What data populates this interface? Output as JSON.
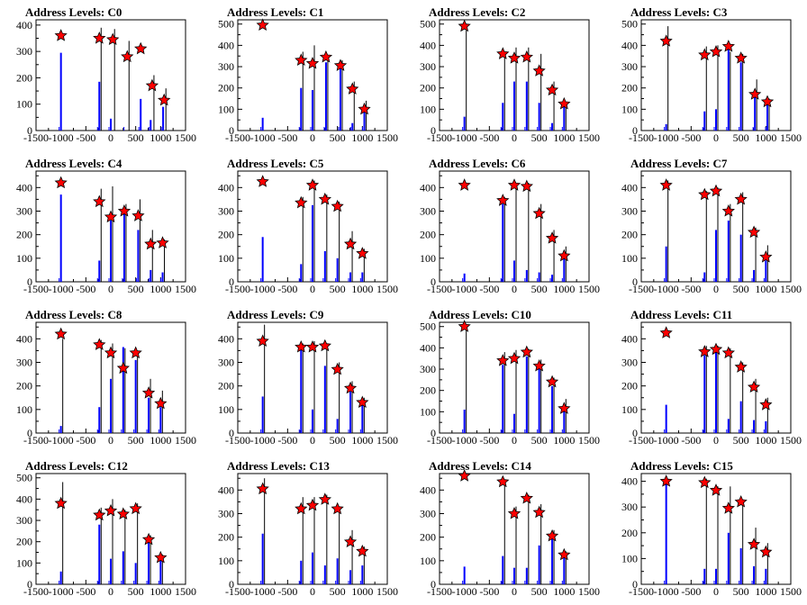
{
  "chart_data": [
    {
      "type": "bar",
      "title": "Address Levels: C0",
      "xlim": [
        -1500,
        1500
      ],
      "ylim": [
        0,
        420
      ],
      "yticks": [
        0,
        100,
        200,
        300,
        400
      ],
      "xticks": [
        -1500,
        -1000,
        -500,
        0,
        500,
        1000,
        1500
      ],
      "marker_x": [
        -1000,
        -230,
        40,
        330,
        600,
        830,
        1070
      ],
      "marker_y": [
        360,
        350,
        345,
        280,
        310,
        170,
        115
      ],
      "blue_x": [
        -1000,
        -230,
        0,
        300,
        600,
        800,
        1050
      ],
      "blue_y": [
        295,
        185,
        45,
        0,
        120,
        40,
        90
      ],
      "black_x": [
        -230,
        40,
        330,
        830,
        1070
      ],
      "black_y": [
        390,
        385,
        340,
        210,
        160
      ]
    },
    {
      "type": "bar",
      "title": "Address Levels: C1",
      "xlim": [
        -1500,
        1500
      ],
      "ylim": [
        0,
        520
      ],
      "yticks": [
        0,
        100,
        200,
        300,
        400,
        500
      ],
      "xticks": [
        -1500,
        -1000,
        -500,
        0,
        500,
        1000,
        1500
      ],
      "marker_x": [
        -1000,
        -230,
        0,
        270,
        560,
        800,
        1040
      ],
      "marker_y": [
        495,
        330,
        315,
        345,
        305,
        195,
        100
      ],
      "blue_x": [
        -1000,
        -230,
        0,
        270,
        560,
        800,
        1040
      ],
      "blue_y": [
        60,
        200,
        190,
        320,
        290,
        35,
        100
      ],
      "black_x": [
        -230,
        0,
        270,
        560,
        800,
        1040
      ],
      "black_y": [
        370,
        400,
        340,
        330,
        230,
        140
      ]
    },
    {
      "type": "bar",
      "title": "Address Levels: C2",
      "xlim": [
        -1500,
        1500
      ],
      "ylim": [
        0,
        520
      ],
      "yticks": [
        0,
        100,
        200,
        300,
        400,
        500
      ],
      "xticks": [
        -1500,
        -1000,
        -500,
        0,
        500,
        1000,
        1500
      ],
      "marker_x": [
        -1000,
        -230,
        0,
        250,
        500,
        760,
        1000
      ],
      "marker_y": [
        490,
        360,
        340,
        345,
        280,
        190,
        125
      ],
      "blue_x": [
        -1000,
        -230,
        0,
        250,
        500,
        760,
        1000
      ],
      "blue_y": [
        65,
        130,
        230,
        230,
        130,
        35,
        125
      ],
      "black_x": [
        -1000,
        -230,
        0,
        250,
        500,
        760,
        1000
      ],
      "black_y": [
        470,
        350,
        390,
        390,
        360,
        230,
        130
      ]
    },
    {
      "type": "bar",
      "title": "Address Levels: C3",
      "xlim": [
        -1500,
        1500
      ],
      "ylim": [
        0,
        520
      ],
      "yticks": [
        0,
        100,
        200,
        300,
        400,
        500
      ],
      "xticks": [
        -1500,
        -1000,
        -500,
        0,
        500,
        1000,
        1500
      ],
      "marker_x": [
        -1000,
        -230,
        0,
        250,
        500,
        780,
        1030
      ],
      "marker_y": [
        420,
        355,
        370,
        395,
        340,
        170,
        135
      ],
      "blue_x": [
        -1000,
        -230,
        0,
        250,
        500,
        780,
        1030
      ],
      "blue_y": [
        30,
        90,
        100,
        380,
        320,
        160,
        130
      ],
      "black_x": [
        -1000,
        -230,
        0,
        250,
        500,
        780,
        1030
      ],
      "black_y": [
        490,
        395,
        400,
        370,
        360,
        240,
        150
      ]
    },
    {
      "type": "bar",
      "title": "Address Levels: C4",
      "xlim": [
        -1500,
        1500
      ],
      "ylim": [
        0,
        470
      ],
      "yticks": [
        0,
        100,
        200,
        300,
        400
      ],
      "xticks": [
        -1500,
        -1000,
        -500,
        0,
        500,
        1000,
        1500
      ],
      "marker_x": [
        -1000,
        -230,
        0,
        270,
        550,
        800,
        1040
      ],
      "marker_y": [
        420,
        340,
        275,
        300,
        280,
        160,
        165
      ],
      "blue_x": [
        -1000,
        -230,
        0,
        270,
        550,
        800,
        1040
      ],
      "blue_y": [
        370,
        90,
        260,
        300,
        220,
        50,
        40
      ],
      "black_x": [
        -230,
        0,
        270,
        550,
        800,
        1040
      ],
      "black_y": [
        395,
        405,
        330,
        350,
        220,
        180
      ]
    },
    {
      "type": "bar",
      "title": "Address Levels: C5",
      "xlim": [
        -1500,
        1500
      ],
      "ylim": [
        0,
        470
      ],
      "yticks": [
        0,
        100,
        200,
        300,
        400
      ],
      "xticks": [
        -1500,
        -1000,
        -500,
        0,
        500,
        1000,
        1500
      ],
      "marker_x": [
        -1000,
        -230,
        0,
        250,
        500,
        760,
        1000
      ],
      "marker_y": [
        425,
        335,
        410,
        350,
        320,
        160,
        120
      ],
      "blue_x": [
        -1000,
        -230,
        0,
        250,
        500,
        760,
        1000
      ],
      "blue_y": [
        190,
        75,
        325,
        130,
        100,
        40,
        40
      ],
      "black_x": [
        -230,
        0,
        250,
        500,
        760,
        1000
      ],
      "black_y": [
        360,
        430,
        370,
        340,
        215,
        140
      ]
    },
    {
      "type": "bar",
      "title": "Address Levels: C6",
      "xlim": [
        -1500,
        1500
      ],
      "ylim": [
        0,
        470
      ],
      "yticks": [
        0,
        100,
        200,
        300,
        400
      ],
      "xticks": [
        -1500,
        -1000,
        -500,
        0,
        500,
        1000,
        1500
      ],
      "marker_x": [
        -1000,
        -230,
        0,
        250,
        500,
        760,
        1000
      ],
      "marker_y": [
        410,
        345,
        410,
        405,
        290,
        185,
        110
      ],
      "blue_x": [
        -1000,
        -230,
        0,
        250,
        500,
        760,
        1000
      ],
      "blue_y": [
        35,
        330,
        90,
        50,
        40,
        30,
        110
      ],
      "black_x": [
        -230,
        0,
        250,
        500,
        760,
        1000
      ],
      "black_y": [
        360,
        420,
        420,
        330,
        220,
        150
      ]
    },
    {
      "type": "bar",
      "title": "Address Levels: C7",
      "xlim": [
        -1500,
        1500
      ],
      "ylim": [
        0,
        470
      ],
      "yticks": [
        0,
        100,
        200,
        300,
        400
      ],
      "xticks": [
        -1500,
        -1000,
        -500,
        0,
        500,
        1000,
        1500
      ],
      "marker_x": [
        -1000,
        -230,
        0,
        250,
        500,
        760,
        1000
      ],
      "marker_y": [
        410,
        370,
        385,
        300,
        350,
        210,
        105
      ],
      "blue_x": [
        -1000,
        -230,
        0,
        250,
        500,
        760,
        1000
      ],
      "blue_y": [
        150,
        40,
        220,
        260,
        200,
        50,
        90
      ],
      "black_x": [
        -1000,
        -230,
        0,
        250,
        500,
        760,
        1000
      ],
      "black_y": [
        430,
        385,
        400,
        330,
        380,
        230,
        155
      ]
    },
    {
      "type": "bar",
      "title": "Address Levels: C8",
      "xlim": [
        -1500,
        1500
      ],
      "ylim": [
        0,
        470
      ],
      "yticks": [
        0,
        100,
        200,
        300,
        400
      ],
      "xticks": [
        -1500,
        -1000,
        -500,
        0,
        500,
        1000,
        1500
      ],
      "marker_x": [
        -1000,
        -230,
        0,
        250,
        500,
        760,
        1000
      ],
      "marker_y": [
        420,
        375,
        340,
        275,
        340,
        170,
        125
      ],
      "blue_x": [
        -1000,
        -230,
        0,
        250,
        500,
        760,
        1000
      ],
      "blue_y": [
        30,
        110,
        230,
        365,
        310,
        150,
        110
      ],
      "black_x": [
        -1000,
        -230,
        0,
        250,
        500,
        760,
        1000
      ],
      "black_y": [
        400,
        395,
        380,
        360,
        350,
        230,
        180
      ]
    },
    {
      "type": "bar",
      "title": "Address Levels: C9",
      "xlim": [
        -1500,
        1500
      ],
      "ylim": [
        0,
        470
      ],
      "yticks": [
        0,
        100,
        200,
        300,
        400
      ],
      "xticks": [
        -1500,
        -1000,
        -500,
        0,
        500,
        1000,
        1500
      ],
      "marker_x": [
        -1000,
        -230,
        0,
        250,
        500,
        760,
        1000
      ],
      "marker_y": [
        390,
        365,
        365,
        370,
        270,
        190,
        130
      ],
      "blue_x": [
        -1000,
        -230,
        0,
        250,
        500,
        760,
        1000
      ],
      "blue_y": [
        155,
        365,
        100,
        285,
        60,
        175,
        130
      ],
      "black_x": [
        -1000,
        -230,
        0,
        250,
        500,
        760,
        1000
      ],
      "black_y": [
        460,
        380,
        390,
        380,
        300,
        220,
        150
      ]
    },
    {
      "type": "bar",
      "title": "Address Levels: C10",
      "xlim": [
        -1500,
        1500
      ],
      "ylim": [
        0,
        520
      ],
      "yticks": [
        0,
        100,
        200,
        300,
        400,
        500
      ],
      "xticks": [
        -1500,
        -1000,
        -500,
        0,
        500,
        1000,
        1500
      ],
      "marker_x": [
        -1000,
        -230,
        0,
        250,
        500,
        760,
        1000
      ],
      "marker_y": [
        500,
        340,
        350,
        380,
        315,
        240,
        115
      ],
      "blue_x": [
        -1000,
        -230,
        0,
        250,
        500,
        760,
        1000
      ],
      "blue_y": [
        110,
        320,
        90,
        360,
        300,
        220,
        110
      ],
      "black_x": [
        -1000,
        -230,
        0,
        250,
        500,
        760,
        1000
      ],
      "black_y": [
        500,
        380,
        390,
        395,
        345,
        260,
        160
      ]
    },
    {
      "type": "bar",
      "title": "Address Levels: C11",
      "xlim": [
        -1500,
        1500
      ],
      "ylim": [
        0,
        470
      ],
      "yticks": [
        0,
        100,
        200,
        300,
        400
      ],
      "xticks": [
        -1500,
        -1000,
        -500,
        0,
        500,
        1000,
        1500
      ],
      "marker_x": [
        -1000,
        -230,
        0,
        250,
        500,
        760,
        1000
      ],
      "marker_y": [
        425,
        345,
        355,
        340,
        280,
        195,
        120
      ],
      "blue_x": [
        -1000,
        -230,
        0,
        250,
        500,
        760,
        1000
      ],
      "blue_y": [
        120,
        330,
        345,
        60,
        135,
        55,
        50
      ],
      "black_x": [
        -230,
        0,
        250,
        500,
        760,
        1000
      ],
      "black_y": [
        370,
        370,
        360,
        300,
        230,
        150
      ]
    },
    {
      "type": "bar",
      "title": "Address Levels: C12",
      "xlim": [
        -1500,
        1500
      ],
      "ylim": [
        0,
        520
      ],
      "yticks": [
        0,
        100,
        200,
        300,
        400,
        500
      ],
      "xticks": [
        -1500,
        -1000,
        -500,
        0,
        500,
        1000,
        1500
      ],
      "marker_x": [
        -1000,
        -230,
        0,
        250,
        500,
        760,
        1000
      ],
      "marker_y": [
        380,
        325,
        345,
        330,
        355,
        210,
        125
      ],
      "blue_x": [
        -1000,
        -230,
        0,
        250,
        500,
        760,
        1000
      ],
      "blue_y": [
        60,
        280,
        120,
        155,
        100,
        200,
        110
      ],
      "black_x": [
        -1000,
        -230,
        0,
        250,
        500,
        760,
        1000
      ],
      "black_y": [
        480,
        360,
        400,
        350,
        380,
        230,
        140
      ]
    },
    {
      "type": "bar",
      "title": "Address Levels: C13",
      "xlim": [
        -1500,
        1500
      ],
      "ylim": [
        0,
        470
      ],
      "yticks": [
        0,
        100,
        200,
        300,
        400
      ],
      "xticks": [
        -1500,
        -1000,
        -500,
        0,
        500,
        1000,
        1500
      ],
      "marker_x": [
        -1000,
        -230,
        0,
        250,
        500,
        760,
        1000
      ],
      "marker_y": [
        405,
        320,
        335,
        360,
        320,
        180,
        140
      ],
      "blue_x": [
        -1000,
        -230,
        0,
        250,
        500,
        760,
        1000
      ],
      "blue_y": [
        215,
        100,
        135,
        80,
        110,
        60,
        80
      ],
      "black_x": [
        -1000,
        -230,
        0,
        250,
        500,
        760,
        1000
      ],
      "black_y": [
        450,
        370,
        370,
        380,
        330,
        230,
        160
      ]
    },
    {
      "type": "bar",
      "title": "Address Levels: C14",
      "xlim": [
        -1500,
        1500
      ],
      "ylim": [
        0,
        470
      ],
      "yticks": [
        0,
        100,
        200,
        300,
        400
      ],
      "xticks": [
        -1500,
        -1000,
        -500,
        0,
        500,
        1000,
        1500
      ],
      "marker_x": [
        -1000,
        -230,
        0,
        250,
        500,
        760,
        1000
      ],
      "marker_y": [
        460,
        435,
        300,
        365,
        305,
        205,
        125
      ],
      "blue_x": [
        -1000,
        -230,
        0,
        250,
        500,
        760,
        1000
      ],
      "blue_y": [
        75,
        120,
        70,
        70,
        165,
        205,
        125
      ],
      "black_x": [
        -230,
        0,
        250,
        500,
        760,
        1000
      ],
      "black_y": [
        440,
        330,
        380,
        340,
        230,
        140
      ]
    },
    {
      "type": "bar",
      "title": "Address Levels: C15",
      "xlim": [
        -1500,
        1500
      ],
      "ylim": [
        0,
        430
      ],
      "yticks": [
        0,
        100,
        200,
        300,
        400
      ],
      "xticks": [
        -1500,
        -1000,
        -500,
        0,
        500,
        1000,
        1500
      ],
      "marker_x": [
        -1000,
        -230,
        0,
        250,
        500,
        760,
        1000
      ],
      "marker_y": [
        400,
        395,
        365,
        295,
        320,
        155,
        125
      ],
      "blue_x": [
        -1000,
        -230,
        0,
        250,
        500,
        760,
        1000
      ],
      "blue_y": [
        395,
        60,
        60,
        200,
        140,
        70,
        60
      ],
      "black_x": [
        -230,
        0,
        250,
        500,
        760,
        1000
      ],
      "black_y": [
        410,
        380,
        380,
        330,
        220,
        160
      ]
    }
  ],
  "colors": {
    "blue_series": "#0000ff",
    "black_series": "#000000",
    "marker_fill": "#ff0000",
    "marker_stroke": "#000000"
  }
}
